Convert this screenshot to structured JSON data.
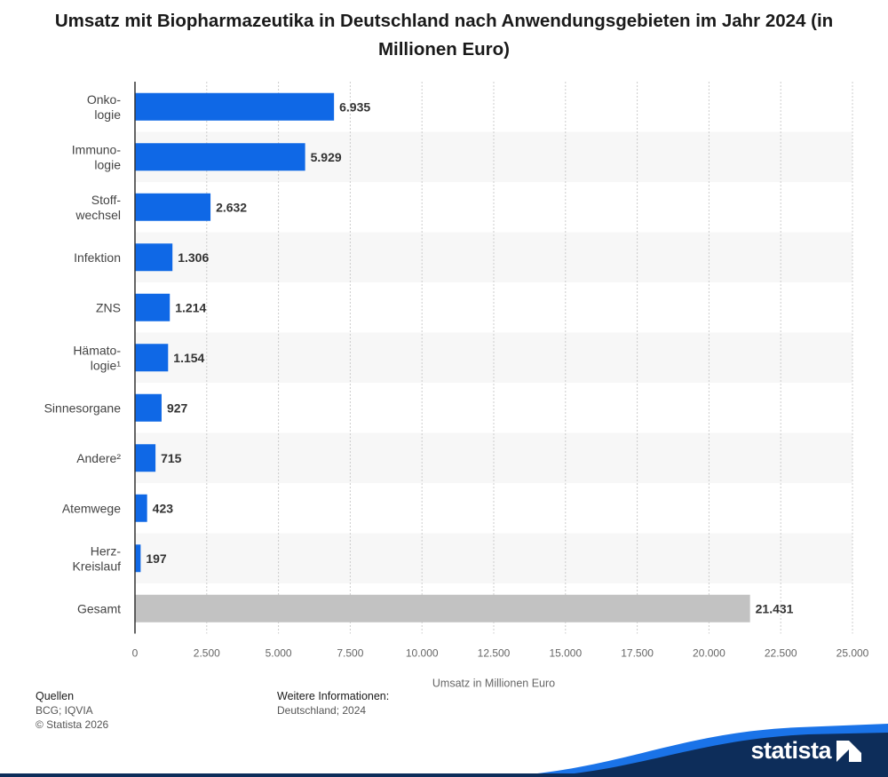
{
  "title": "Umsatz mit Biopharmazeutika in Deutschland nach Anwendungsgebieten im Jahr 2024 (in Millionen Euro)",
  "chart_data": {
    "type": "bar",
    "orientation": "horizontal",
    "title": "Umsatz mit Biopharmazeutika in Deutschland nach Anwendungsgebieten im Jahr 2024 (in Millionen Euro)",
    "xlabel": "Umsatz in Millionen Euro",
    "ylabel": "",
    "xlim": [
      0,
      25000
    ],
    "xticks": [
      0,
      2500,
      5000,
      7500,
      10000,
      12500,
      15000,
      17500,
      20000,
      22500,
      25000
    ],
    "xtick_labels": [
      "0",
      "2.500",
      "5.000",
      "7.500",
      "10.000",
      "12.500",
      "15.000",
      "17.500",
      "20.000",
      "22.500",
      "25.000"
    ],
    "categories": [
      [
        "Onko-",
        "logie"
      ],
      [
        "Immuno-",
        "logie"
      ],
      [
        "Stoff-",
        "wechsel"
      ],
      [
        "Infektion"
      ],
      [
        "ZNS"
      ],
      [
        "Hämato-",
        "logie¹"
      ],
      [
        "Sinnesorgane"
      ],
      [
        "Andere²"
      ],
      [
        "Atemwege"
      ],
      [
        "Herz-",
        "Kreislauf"
      ],
      [
        "Gesamt"
      ]
    ],
    "values": [
      6935,
      5929,
      2632,
      1306,
      1214,
      1154,
      927,
      715,
      423,
      197,
      21431
    ],
    "value_labels": [
      "6.935",
      "5.929",
      "2.632",
      "1.306",
      "1.214",
      "1.154",
      "927",
      "715",
      "423",
      "197",
      "21.431"
    ],
    "highlight_last": true,
    "grid": true,
    "colors": {
      "bar": "#0f68e6",
      "total": "#c2c2c2",
      "band": "#f7f7f7",
      "grid": "#cccccc",
      "axis": "#333333"
    }
  },
  "footer": {
    "sources_heading": "Quellen",
    "sources_text": "BCG; IQVIA",
    "copyright": "© Statista 2026",
    "info_heading": "Weitere Informationen:",
    "info_text": "Deutschland; 2024",
    "brand": "statista",
    "brand_colors": {
      "navy": "#0d2d5a",
      "blue": "#1a73e8"
    }
  }
}
